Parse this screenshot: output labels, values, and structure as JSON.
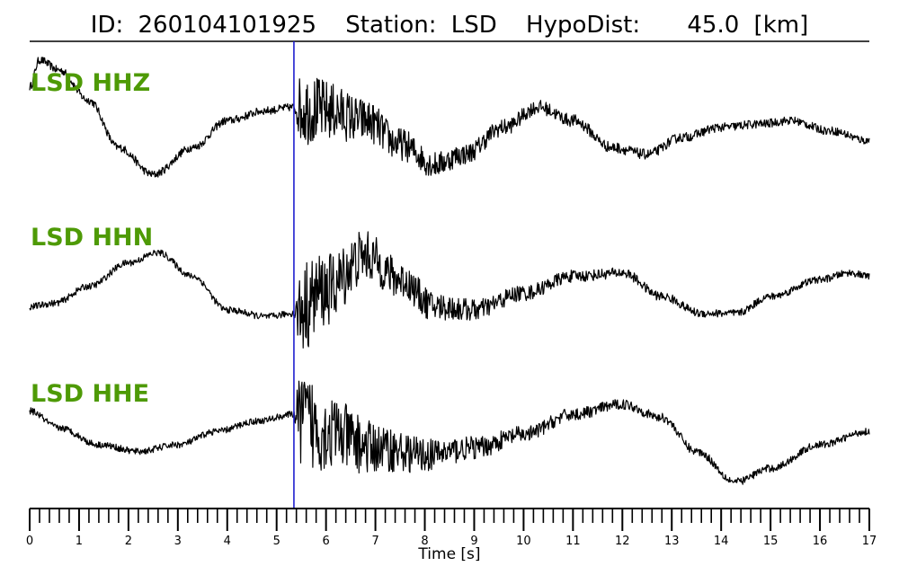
{
  "chart_data": {
    "type": "line",
    "title_parts": {
      "id_label": "ID:",
      "id_value": "260104101925",
      "station_label": "Station:",
      "station_value": "LSD",
      "dist_label": "HypoDist:",
      "dist_value": "45.0",
      "dist_unit": "[km]"
    },
    "xlabel": "Time [s]",
    "xlim": [
      0,
      17
    ],
    "major_ticks": [
      0,
      1,
      2,
      3,
      4,
      5,
      6,
      7,
      8,
      9,
      10,
      11,
      12,
      13,
      14,
      15,
      16,
      17
    ],
    "minor_tick_step": 0.2,
    "marker_time": 5.35,
    "label_color": "#4e9a06",
    "trace_color": "#000000",
    "marker_color": "#1f1fd0",
    "series": [
      {
        "name": "LSD HHZ",
        "noise": 0.06,
        "burst_start": 5.35,
        "burst_amp": 0.55,
        "envelope": [
          [
            0.0,
            0.55
          ],
          [
            0.2,
            0.95
          ],
          [
            0.6,
            0.8
          ],
          [
            1.2,
            0.35
          ],
          [
            1.8,
            -0.35
          ],
          [
            2.5,
            -0.75
          ],
          [
            3.3,
            -0.35
          ],
          [
            4.0,
            0.05
          ],
          [
            4.8,
            0.2
          ],
          [
            5.35,
            0.25
          ],
          [
            6.0,
            0.2
          ],
          [
            6.8,
            0.05
          ],
          [
            7.5,
            -0.3
          ],
          [
            8.2,
            -0.6
          ],
          [
            8.8,
            -0.45
          ],
          [
            9.6,
            -0.05
          ],
          [
            10.3,
            0.25
          ],
          [
            11.0,
            0.05
          ],
          [
            11.8,
            -0.35
          ],
          [
            12.5,
            -0.45
          ],
          [
            13.2,
            -0.2
          ],
          [
            14.0,
            -0.05
          ],
          [
            14.8,
            0.0
          ],
          [
            15.4,
            0.05
          ],
          [
            16.2,
            -0.1
          ],
          [
            17.0,
            -0.25
          ]
        ]
      },
      {
        "name": "LSD HHN",
        "noise": 0.05,
        "burst_start": 5.35,
        "burst_amp": 0.7,
        "envelope": [
          [
            0.0,
            -0.35
          ],
          [
            0.5,
            -0.3
          ],
          [
            1.2,
            -0.05
          ],
          [
            2.0,
            0.3
          ],
          [
            2.6,
            0.45
          ],
          [
            3.3,
            0.1
          ],
          [
            4.0,
            -0.4
          ],
          [
            4.8,
            -0.5
          ],
          [
            5.35,
            -0.45
          ],
          [
            6.0,
            -0.1
          ],
          [
            6.8,
            0.4
          ],
          [
            7.5,
            0.05
          ],
          [
            8.2,
            -0.35
          ],
          [
            9.0,
            -0.4
          ],
          [
            10.0,
            -0.15
          ],
          [
            11.0,
            0.1
          ],
          [
            12.0,
            0.15
          ],
          [
            12.8,
            -0.2
          ],
          [
            13.6,
            -0.45
          ],
          [
            14.3,
            -0.45
          ],
          [
            15.0,
            -0.2
          ],
          [
            16.0,
            0.05
          ],
          [
            16.6,
            0.15
          ],
          [
            17.0,
            0.1
          ]
        ]
      },
      {
        "name": "LSD HHE",
        "noise": 0.05,
        "burst_start": 5.35,
        "burst_amp": 0.75,
        "envelope": [
          [
            0.0,
            0.3
          ],
          [
            0.6,
            0.05
          ],
          [
            1.4,
            -0.2
          ],
          [
            2.2,
            -0.3
          ],
          [
            3.0,
            -0.2
          ],
          [
            3.8,
            0.0
          ],
          [
            4.6,
            0.15
          ],
          [
            5.35,
            0.25
          ],
          [
            6.0,
            0.0
          ],
          [
            7.0,
            -0.25
          ],
          [
            8.0,
            -0.35
          ],
          [
            9.0,
            -0.25
          ],
          [
            10.0,
            -0.05
          ],
          [
            11.0,
            0.25
          ],
          [
            12.0,
            0.4
          ],
          [
            12.8,
            0.2
          ],
          [
            13.5,
            -0.3
          ],
          [
            14.3,
            -0.75
          ],
          [
            15.0,
            -0.55
          ],
          [
            16.0,
            -0.2
          ],
          [
            17.0,
            0.0
          ]
        ]
      }
    ]
  }
}
